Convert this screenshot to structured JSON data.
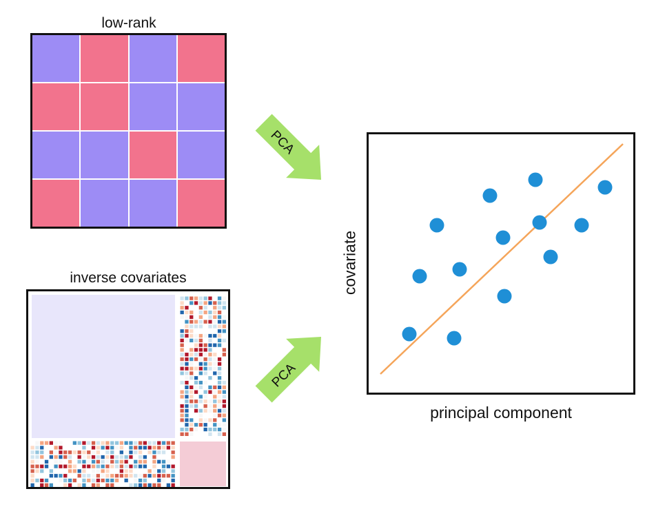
{
  "lowrank": {
    "title": "low-rank",
    "colors": {
      "a": "#9d8cf5",
      "b": "#f2738d"
    },
    "pattern": [
      [
        "a",
        "b",
        "a",
        "b"
      ],
      [
        "b",
        "b",
        "a",
        "a"
      ],
      [
        "a",
        "a",
        "b",
        "a"
      ],
      [
        "b",
        "a",
        "a",
        "b"
      ]
    ]
  },
  "inverse": {
    "title": "inverse covariates",
    "colors": {
      "block_top_left": "#e8e6fb",
      "block_bottom_right": "#f4ccd6"
    }
  },
  "arrows": {
    "top_label": "PCA",
    "bottom_label": "PCA",
    "color": "#a6e06a"
  },
  "scatter": {
    "xlabel": "principal component",
    "ylabel": "covariate",
    "point_color": "#1f8fd6",
    "line_color": "#f5a55a"
  }
}
